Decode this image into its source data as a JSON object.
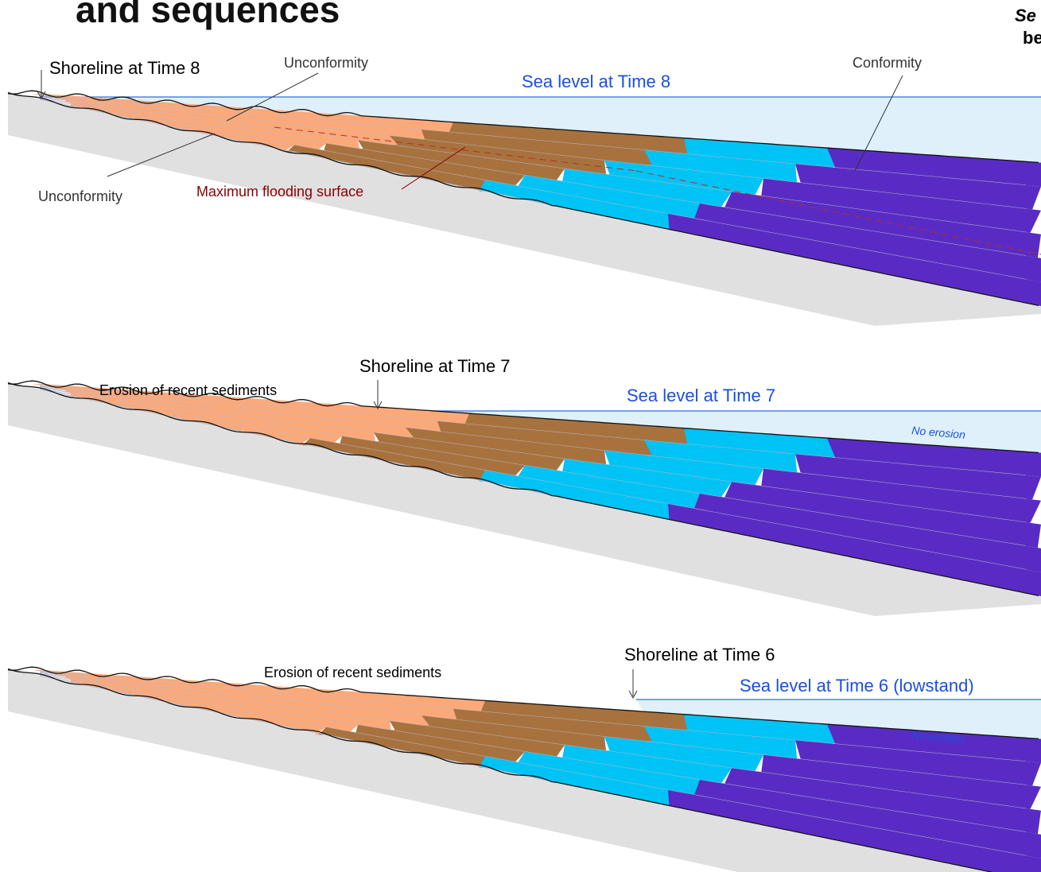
{
  "header": {
    "title": "and sequences",
    "side_1": "Se",
    "side_2": "be"
  },
  "panels": [
    {
      "shoreline": "Shoreline at Time 8",
      "sea_level": "Sea level at Time 8",
      "unconformity_top": "Unconformity",
      "unconformity_bottom": "Unconformity",
      "conformity": "Conformity",
      "mfs": "Maximum flooding surface"
    },
    {
      "shoreline": "Shoreline at Time 7",
      "erosion": "Erosion of recent sediments",
      "sea_level": "Sea level at Time 7",
      "no_erosion": "No erosion"
    },
    {
      "shoreline": "Shoreline at Time 6",
      "erosion": "Erosion of recent sediments",
      "sea_level": "Sea level at Time 6 (lowstand)",
      "no_erosion": "No erosion"
    }
  ]
}
